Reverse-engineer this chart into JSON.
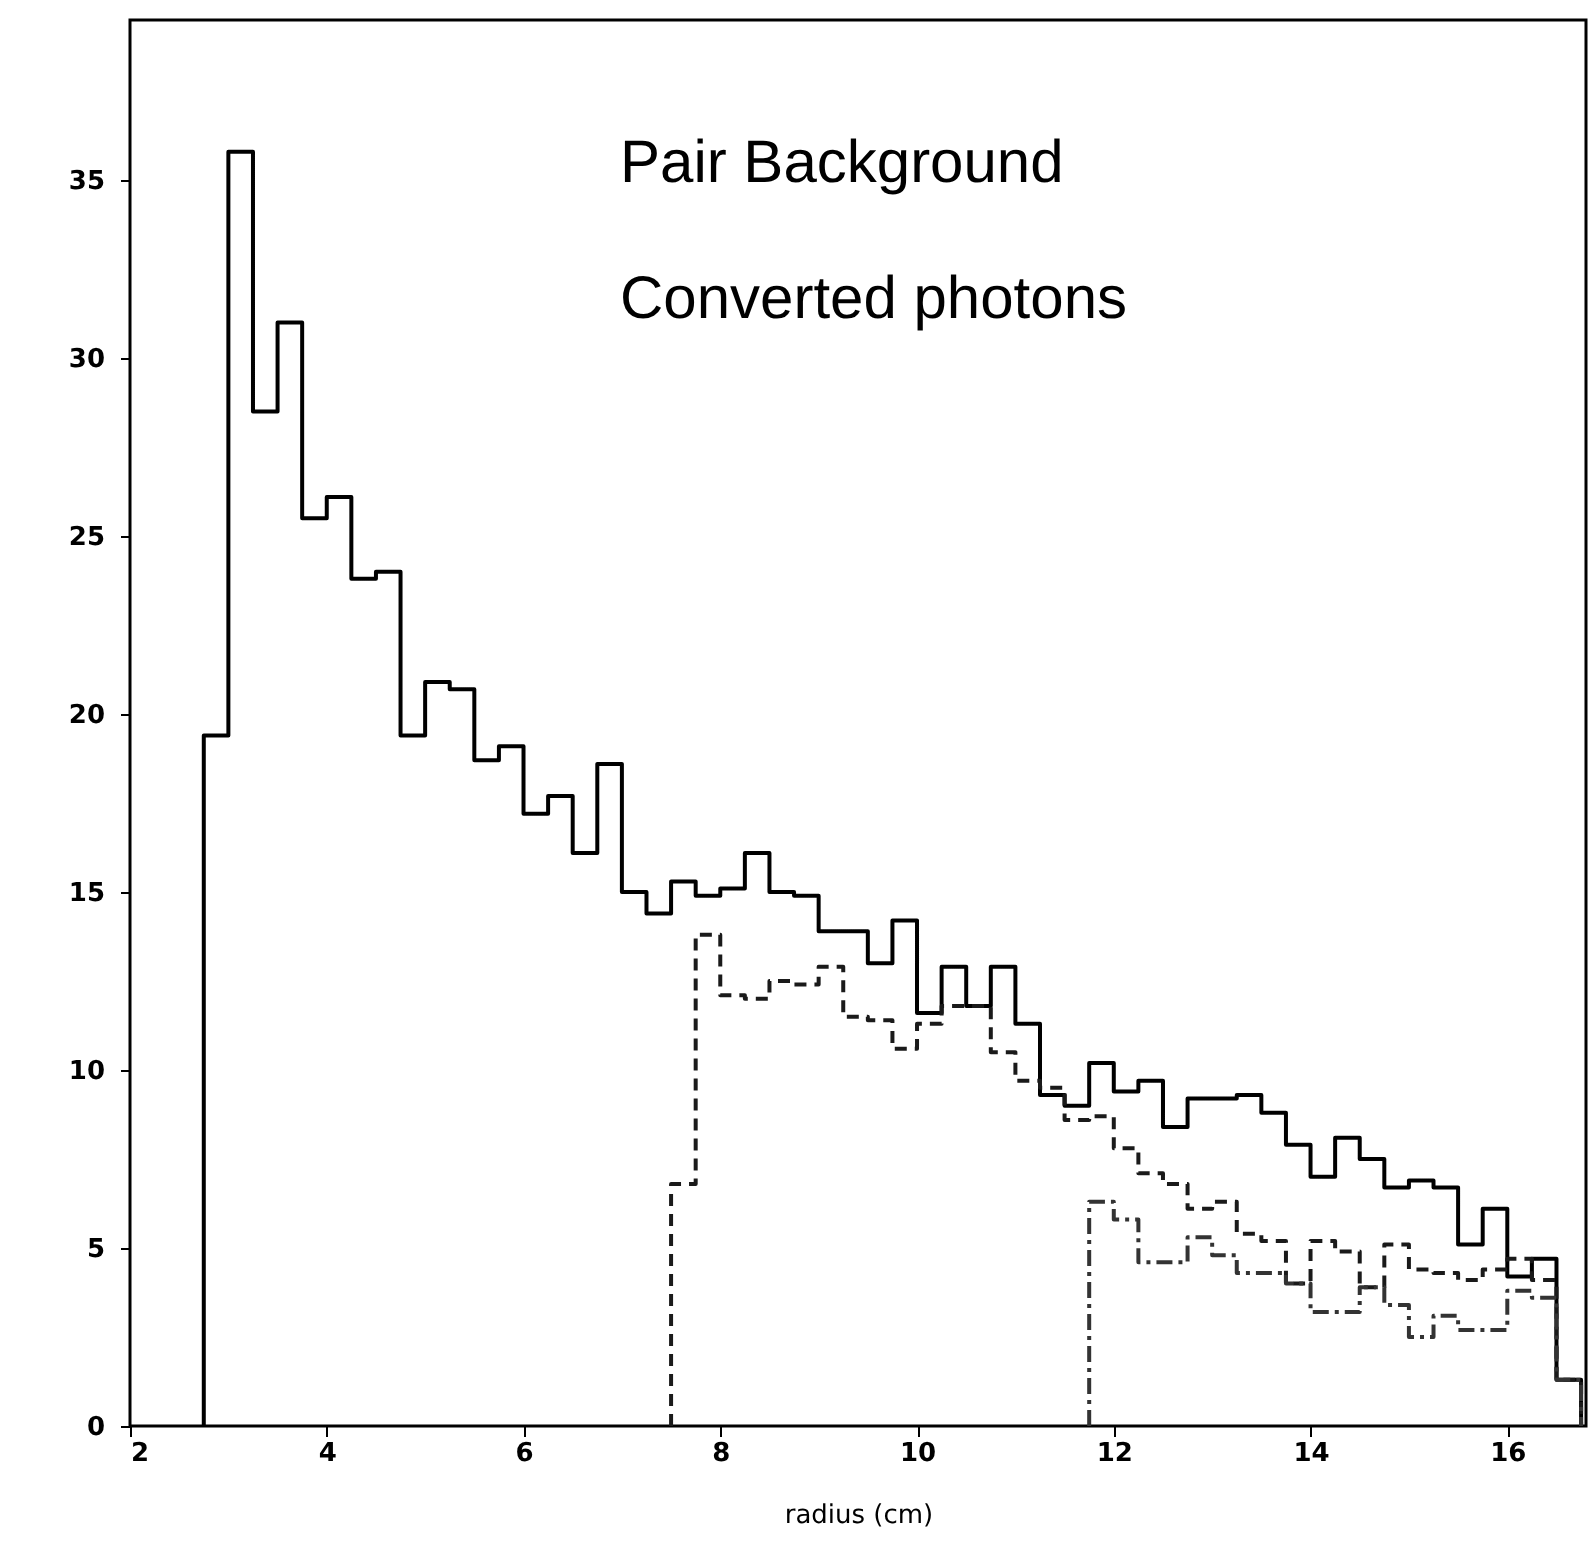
{
  "chart_data": {
    "type": "histogram",
    "xlabel": "radius (cm)",
    "bins": [
      2.75,
      3.0,
      3.25,
      3.5,
      3.75,
      4.0,
      4.25,
      4.5,
      4.75,
      5.0,
      5.25,
      5.5,
      5.75,
      6.0,
      6.25,
      6.5,
      6.75,
      7.0,
      7.25,
      7.5,
      7.75,
      8.0,
      8.25,
      8.5,
      8.75,
      9.0,
      9.25,
      9.5,
      9.75,
      10.0,
      10.25,
      10.5,
      10.75,
      11.0,
      11.25,
      11.5,
      11.75,
      12.0,
      12.25,
      12.5,
      12.75,
      13.0,
      13.25,
      13.5,
      13.75,
      14.0,
      14.25,
      14.5,
      14.75,
      15.0,
      15.25,
      15.5,
      15.75,
      16.0,
      16.25,
      16.5,
      16.75
    ],
    "series": [
      {
        "color": "#000000",
        "line_style": "solid",
        "values": [
          19.4,
          35.8,
          28.5,
          31.0,
          25.5,
          26.1,
          23.8,
          24.0,
          19.4,
          20.9,
          20.7,
          18.7,
          19.1,
          17.2,
          17.7,
          16.1,
          18.6,
          15.0,
          14.4,
          15.3,
          14.9,
          15.1,
          16.1,
          15.0,
          14.9,
          13.9,
          13.9,
          13.0,
          14.2,
          11.6,
          12.9,
          11.8,
          12.9,
          11.3,
          9.3,
          9.0,
          10.2,
          9.4,
          9.7,
          8.4,
          9.2,
          9.2,
          9.3,
          8.8,
          7.9,
          7.0,
          8.1,
          7.5,
          6.7,
          6.9,
          6.7,
          5.1,
          6.1,
          4.2,
          4.7,
          1.3
        ]
      },
      {
        "color": "#1a1a1a",
        "line_style": "dashed",
        "bins": [
          7.5,
          7.75,
          8.0,
          8.25,
          8.5,
          8.75,
          9.0,
          9.25,
          9.5,
          9.75,
          10.0,
          10.25,
          10.5,
          10.75,
          11.0,
          11.25,
          11.5,
          11.75,
          12.0,
          12.25,
          12.5,
          12.75,
          13.0,
          13.25,
          13.5,
          13.75,
          14.0,
          14.25,
          14.5,
          14.75,
          15.0,
          15.25,
          15.5,
          15.75,
          16.0,
          16.25,
          16.5,
          16.75
        ],
        "values": [
          6.8,
          13.8,
          12.1,
          12.0,
          12.5,
          12.4,
          12.9,
          11.5,
          11.4,
          10.6,
          11.3,
          11.8,
          11.8,
          10.5,
          9.7,
          9.5,
          8.6,
          8.7,
          7.8,
          7.1,
          6.8,
          6.1,
          6.3,
          5.4,
          5.2,
          4.0,
          5.2,
          4.9,
          3.9,
          5.1,
          4.4,
          4.3,
          4.1,
          4.4,
          4.7,
          4.1,
          1.3
        ]
      },
      {
        "color": "#333333",
        "line_style": "dashdot",
        "bins": [
          11.75,
          12.0,
          12.25,
          12.5,
          12.75,
          13.0,
          13.25,
          13.5,
          13.75,
          14.0,
          14.25,
          14.5,
          14.75,
          15.0,
          15.25,
          15.5,
          15.75,
          16.0,
          16.25,
          16.5,
          16.75
        ],
        "values": [
          6.3,
          5.8,
          4.6,
          4.6,
          5.3,
          4.8,
          4.3,
          4.3,
          4.0,
          3.2,
          3.2,
          3.9,
          3.4,
          2.5,
          3.1,
          2.7,
          2.7,
          3.8,
          3.6,
          1.3
        ]
      }
    ],
    "xlim": [
      2,
      16.8
    ],
    "xticks": [
      2,
      4,
      6,
      8,
      10,
      12,
      14,
      16
    ],
    "ylim": [
      0,
      39.5
    ],
    "yticks": [
      0,
      5,
      10,
      15,
      20,
      25,
      30,
      35
    ],
    "grid": false,
    "annotations": [
      "Pair Background",
      "Converted photons"
    ]
  }
}
